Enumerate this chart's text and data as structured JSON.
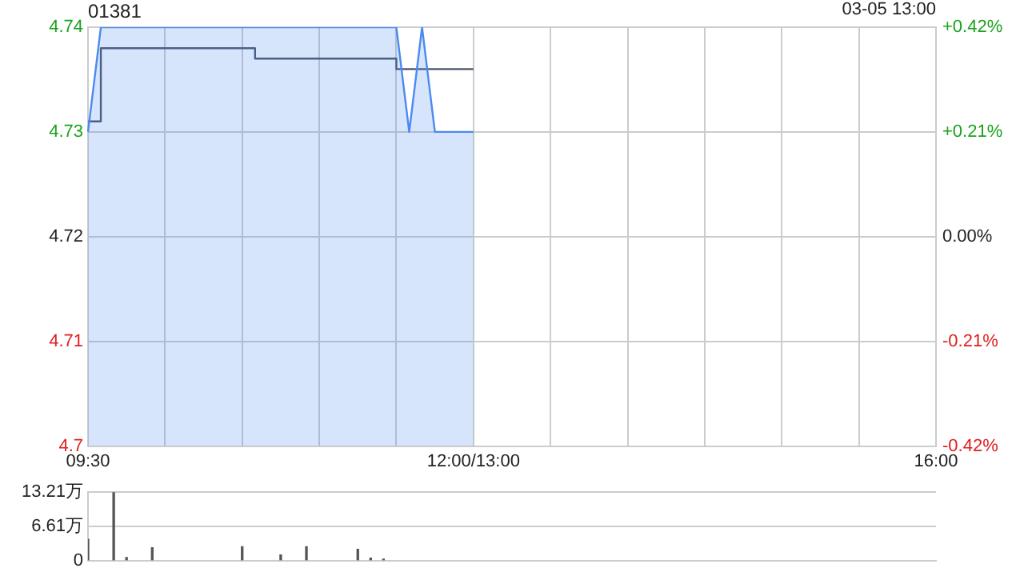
{
  "chart_data": [
    {
      "type": "line",
      "title": "01381",
      "annotations": [
        "03-05 13:00"
      ],
      "categories": [
        "09:30",
        null,
        null,
        null,
        null,
        null,
        null,
        null,
        null,
        null,
        null,
        null,
        null,
        null,
        null,
        null,
        null,
        null,
        null,
        null,
        null,
        null,
        null,
        null,
        null,
        null,
        null,
        null,
        null,
        null,
        "12:00/13:00",
        null,
        null,
        null,
        null,
        null,
        null,
        null,
        null,
        null,
        null,
        null,
        null,
        null,
        null,
        null,
        null,
        null,
        null,
        null,
        null,
        null,
        null,
        null,
        null,
        null,
        null,
        null,
        null,
        null,
        null,
        null,
        null,
        null,
        null,
        null,
        "16:00"
      ],
      "ylim": [
        4.7,
        4.74
      ],
      "yticks": [
        4.7,
        4.71,
        4.72,
        4.73,
        4.74
      ],
      "y2lim": [
        -0.42,
        0.42
      ],
      "y2ticks": [
        {
          "value": -0.42,
          "label": "-0.42%"
        },
        {
          "value": -0.21,
          "label": "-0.21%"
        },
        {
          "value": 0,
          "label": "0.00%"
        },
        {
          "value": 0.21,
          "label": "+0.21%"
        },
        {
          "value": 0.42,
          "label": "+0.42%"
        }
      ],
      "grid": true,
      "legend": false,
      "series": [
        {
          "type": "area",
          "color": "#4a8af0",
          "values": [
            4.73,
            4.74,
            4.74,
            4.74,
            4.74,
            4.74,
            4.74,
            4.74,
            4.74,
            4.74,
            4.74,
            4.74,
            4.74,
            4.74,
            4.74,
            4.74,
            4.74,
            4.74,
            4.74,
            4.74,
            4.74,
            4.74,
            4.74,
            4.74,
            4.74,
            4.73,
            4.74,
            4.73,
            4.73,
            4.73,
            4.73,
            null,
            null,
            null,
            null,
            null,
            null,
            null,
            null,
            null,
            null,
            null,
            null,
            null,
            null,
            null,
            null,
            null,
            null,
            null,
            null,
            null,
            null,
            null,
            null,
            null,
            null,
            null,
            null,
            null,
            null,
            null,
            null,
            null,
            null,
            null,
            null
          ]
        },
        {
          "type": "step",
          "color": "#4a5568",
          "values": [
            4.731,
            4.731,
            4.738,
            4.738,
            4.738,
            4.738,
            4.738,
            4.738,
            4.738,
            4.738,
            4.738,
            4.738,
            4.738,
            4.738,
            4.737,
            4.737,
            4.737,
            4.737,
            4.737,
            4.737,
            4.737,
            4.737,
            4.737,
            4.737,
            4.737,
            4.736,
            4.736,
            4.736,
            4.736,
            4.736,
            4.736,
            null,
            null,
            null,
            null,
            null,
            null,
            null,
            null,
            null,
            null,
            null,
            null,
            null,
            null,
            null,
            null,
            null,
            null,
            null,
            null,
            null,
            null,
            null,
            null,
            null,
            null,
            null,
            null,
            null,
            null,
            null,
            null,
            null,
            null,
            null,
            null
          ]
        }
      ]
    },
    {
      "type": "bar",
      "tick_labels": "y",
      "categories": [
        null,
        null,
        null,
        null,
        null,
        null,
        null,
        null,
        null,
        null,
        null,
        null,
        null,
        null,
        null,
        null,
        null,
        null,
        null,
        null,
        null,
        null,
        null,
        null,
        null,
        null,
        null,
        null,
        null,
        null,
        null,
        null,
        null,
        null,
        null,
        null,
        null,
        null,
        null,
        null,
        null,
        null,
        null,
        null,
        null,
        null,
        null,
        null,
        null,
        null,
        null,
        null,
        null,
        null,
        null,
        null,
        null,
        null,
        null,
        null,
        null,
        null,
        null,
        null,
        null,
        null,
        null
      ],
      "ylim": [
        0,
        13.21
      ],
      "yticks": [
        {
          "value": 0,
          "label": "0"
        },
        {
          "value": 6.61,
          "label": "6.61万"
        },
        {
          "value": 13.21,
          "label": "13.21万"
        }
      ],
      "grid": "y",
      "legend": false,
      "series": [
        {
          "color": "#555555",
          "values": [
            4.1,
            null,
            13.2,
            0.6,
            null,
            2.5,
            null,
            null,
            null,
            null,
            null,
            null,
            2.7,
            null,
            null,
            1.1,
            null,
            2.7,
            null,
            null,
            null,
            2.2,
            0.5,
            0.3,
            null,
            null,
            null,
            null,
            null,
            null,
            null,
            null,
            null,
            null,
            null,
            null,
            null,
            null,
            null,
            null,
            null,
            null,
            null,
            null,
            null,
            null,
            null,
            null,
            null,
            null,
            null,
            null,
            null,
            null,
            null,
            null,
            null,
            null,
            null,
            null,
            null,
            null,
            null,
            null,
            null,
            null,
            null
          ]
        }
      ]
    }
  ]
}
